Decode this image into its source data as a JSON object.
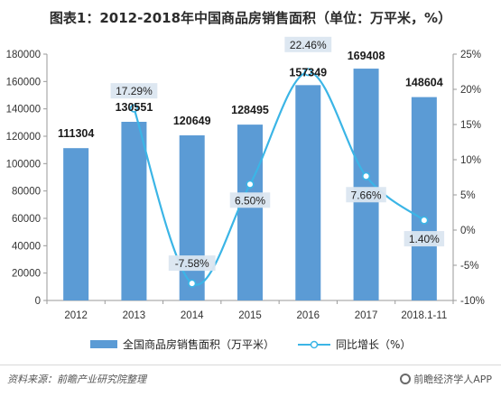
{
  "header": {
    "title": "图表1：2012-2018年中国商品房销售面积（单位：万平米，%）"
  },
  "colors": {
    "bar": "#5b9bd5",
    "line": "#3bb5e6",
    "axis": "#9a9a9a",
    "label_box": "#dbe6f0"
  },
  "chart_data": {
    "type": "bar",
    "categories": [
      "2012",
      "2013",
      "2014",
      "2015",
      "2016",
      "2017",
      "2018.1-11"
    ],
    "series": [
      {
        "name": "全国商品房销售面积（万平米）",
        "type": "bar",
        "axis": "left",
        "values": [
          111304,
          130551,
          120649,
          128495,
          157349,
          169408,
          148604
        ],
        "labels": [
          "111304",
          "130551",
          "120649",
          "128495",
          "157349",
          "169408",
          "148604"
        ]
      },
      {
        "name": "同比增长（%）",
        "type": "line",
        "axis": "right",
        "smooth": true,
        "values": [
          null,
          17.29,
          -7.58,
          6.5,
          22.46,
          7.66,
          1.4
        ],
        "labels": [
          "",
          "17.29%",
          "-7.58%",
          "6.50%",
          "22.46%",
          "7.66%",
          "1.40%"
        ]
      }
    ],
    "y_left": {
      "ylim": [
        0,
        180000
      ],
      "ticks": [
        "0",
        "20000",
        "40000",
        "60000",
        "80000",
        "100000",
        "120000",
        "140000",
        "160000",
        "180000"
      ]
    },
    "y_right": {
      "ylim": [
        -10,
        25
      ],
      "ticks": [
        "-10%",
        "-5%",
        "0%",
        "5%",
        "10%",
        "15%",
        "20%",
        "25%"
      ]
    },
    "legend_position": "bottom",
    "grid": false
  },
  "footer": {
    "source": "资料来源：前瞻产业研究院整理",
    "brand": "前瞻经济学人APP"
  }
}
